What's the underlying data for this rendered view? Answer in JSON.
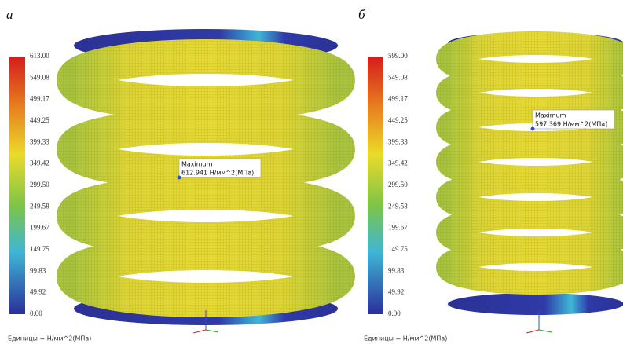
{
  "panels": [
    {
      "label": "а",
      "legend": {
        "ticks": [
          "613.00",
          "549.08",
          "499.17",
          "449.25",
          "399.33",
          "349.42",
          "299.50",
          "249.58",
          "199.67",
          "149.75",
          "99.83",
          "49.92",
          "0.00"
        ]
      },
      "annotation": {
        "title": "Maximum",
        "value": "612.941 Н/мм^2(МПа)"
      },
      "units": "Единицы = Н/мм^2(МПа)"
    },
    {
      "label": "б",
      "legend": {
        "ticks": [
          "599.00",
          "549.08",
          "499.17",
          "449.25",
          "399.33",
          "349.42",
          "299.50",
          "249.58",
          "199.67",
          "149.75",
          "99.83",
          "49.92",
          "0.00"
        ]
      },
      "annotation": {
        "title": "Maximum",
        "value": "597.369 Н/мм^2(МПа)"
      },
      "units": "Единицы = Н/мм^2(МПа)"
    }
  ]
}
